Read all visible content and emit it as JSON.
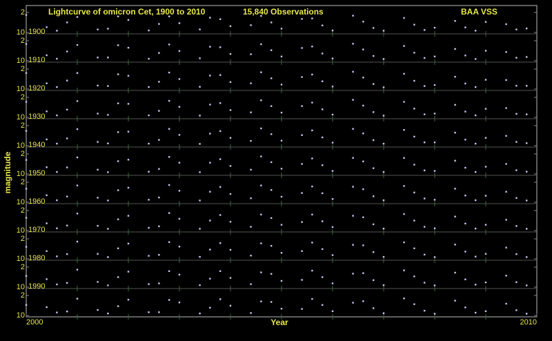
{
  "chart_data": {
    "type": "scatter",
    "title": "Lightcurve of omicron Cet, 1900 to 2010",
    "annotations": [
      "15,840 Observations",
      "BAA VSS"
    ],
    "x_label": "Year",
    "y_label": "magnitude",
    "xlim": [
      2000,
      2010
    ],
    "xticks": [
      2000,
      2010
    ],
    "xticks_minor": [
      2001,
      2002,
      2003,
      2004,
      2005,
      2006,
      2007,
      2008,
      2009
    ],
    "ylim": [
      10,
      2
    ],
    "yticks": [
      2,
      10
    ],
    "color": "#c8c8f4",
    "x": [
      2000,
      2000.2,
      2000.4,
      2000.6,
      2000.8,
      2001,
      2001.2,
      2001.4,
      2001.6,
      2001.8,
      2002,
      2002.2,
      2002.4,
      2002.6,
      2002.8,
      2003,
      2003.2,
      2003.4,
      2003.6,
      2003.8,
      2004,
      2004.2,
      2004.4,
      2004.6,
      2004.8,
      2005,
      2005.2,
      2005.4,
      2005.6,
      2005.8,
      2006,
      2006.2,
      2006.4,
      2006.6,
      2006.8,
      2007,
      2007.2,
      2007.4,
      2007.6,
      2007.8,
      2008,
      2008.2,
      2008.4,
      2008.6,
      2008.8,
      2009,
      2009.2,
      2009.4,
      2009.6,
      2009.8
    ],
    "series": [
      {
        "name": "1900",
        "values": [
          3.0,
          null,
          7.9,
          9.3,
          6.0,
          3.8,
          null,
          8.8,
          8.5,
          3.6,
          5.0,
          null,
          9.2,
          6.6,
          3.6,
          6.3,
          null,
          8.8,
          4.1,
          4.7,
          7.5,
          null,
          7.1,
          3.4,
          6.0,
          8.5,
          null,
          4.6,
          4.4,
          7.2,
          9.2,
          null,
          3.3,
          5.7,
          8.2,
          9.3,
          null,
          4.2,
          6.9,
          9.0,
          8.1,
          null,
          5.4,
          8.0,
          9.3,
          5.8,
          null,
          6.7,
          8.8,
          8.4
        ]
      },
      {
        "name": "1910",
        "values": [
          3.3,
          null,
          7.8,
          9.2,
          6.3,
          3.7,
          null,
          8.7,
          8.7,
          3.8,
          4.8,
          null,
          9.2,
          6.9,
          3.5,
          6.1,
          null,
          9.0,
          4.4,
          4.6,
          7.3,
          null,
          7.4,
          3.4,
          5.8,
          8.3,
          null,
          4.9,
          4.3,
          7.1,
          9.1,
          null,
          3.2,
          5.5,
          8.1,
          9.3,
          null,
          4.1,
          6.8,
          8.9,
          8.3,
          null,
          5.3,
          7.9,
          9.3,
          6.0,
          null,
          6.5,
          8.8,
          8.5
        ]
      },
      {
        "name": "1920",
        "values": [
          3.6,
          null,
          7.7,
          9.2,
          6.6,
          3.6,
          null,
          8.6,
          8.8,
          4.1,
          4.7,
          null,
          9.2,
          7.1,
          3.4,
          6.0,
          null,
          9.1,
          4.6,
          4.4,
          7.2,
          null,
          7.7,
          3.3,
          5.7,
          8.2,
          null,
          5.2,
          4.2,
          6.9,
          9.0,
          null,
          3.1,
          5.4,
          8.0,
          9.3,
          null,
          3.9,
          6.7,
          8.8,
          8.4,
          null,
          5.1,
          7.8,
          9.2,
          6.3,
          null,
          6.4,
          8.7,
          8.7
        ]
      },
      {
        "name": "1930",
        "values": [
          3.8,
          null,
          7.6,
          9.2,
          6.9,
          3.5,
          null,
          8.5,
          9.0,
          4.4,
          4.6,
          null,
          9.2,
          7.4,
          3.4,
          5.8,
          null,
          9.3,
          4.9,
          4.3,
          7.1,
          null,
          8.0,
          3.2,
          5.5,
          8.1,
          null,
          5.5,
          4.1,
          6.8,
          8.9,
          null,
          3.0,
          5.3,
          7.9,
          9.3,
          null,
          3.8,
          6.5,
          8.8,
          8.5,
          null,
          5.0,
          7.7,
          9.2,
          6.6,
          null,
          6.3,
          8.6,
          8.8
        ]
      },
      {
        "name": "1940",
        "values": [
          4.1,
          null,
          7.5,
          9.2,
          7.1,
          3.4,
          null,
          8.5,
          9.1,
          4.6,
          4.4,
          null,
          9.2,
          7.7,
          3.3,
          5.7,
          null,
          9.3,
          5.2,
          4.2,
          6.9,
          null,
          8.1,
          3.1,
          5.4,
          8.0,
          null,
          5.8,
          3.9,
          6.7,
          8.8,
          null,
          3.3,
          5.1,
          7.8,
          9.2,
          null,
          3.7,
          6.4,
          8.7,
          8.7,
          null,
          4.8,
          7.6,
          9.2,
          6.9,
          null,
          6.1,
          8.5,
          9.0
        ]
      },
      {
        "name": "1950",
        "values": [
          4.4,
          null,
          7.3,
          9.2,
          7.4,
          3.4,
          null,
          8.3,
          9.3,
          4.9,
          4.3,
          null,
          9.1,
          8.0,
          3.2,
          5.5,
          null,
          9.3,
          5.5,
          4.1,
          6.8,
          null,
          8.3,
          3.0,
          5.3,
          7.9,
          null,
          6.0,
          3.8,
          6.5,
          8.8,
          null,
          3.6,
          5.0,
          7.7,
          9.2,
          null,
          3.6,
          6.3,
          8.6,
          8.8,
          null,
          4.7,
          7.5,
          9.2,
          7.1,
          null,
          6.0,
          8.5,
          9.1
        ]
      },
      {
        "name": "1960",
        "values": [
          4.6,
          null,
          7.2,
          9.2,
          7.7,
          3.3,
          null,
          8.2,
          9.3,
          5.2,
          4.2,
          null,
          9.0,
          8.1,
          3.1,
          5.4,
          null,
          9.3,
          5.8,
          3.9,
          6.7,
          null,
          8.4,
          3.3,
          5.1,
          7.8,
          null,
          6.3,
          3.7,
          6.4,
          8.7,
          null,
          3.8,
          4.8,
          7.6,
          9.2,
          null,
          3.5,
          6.1,
          8.5,
          9.0,
          null,
          4.6,
          7.3,
          9.2,
          7.4,
          null,
          5.8,
          8.3,
          9.3
        ]
      },
      {
        "name": "1970",
        "values": [
          4.9,
          null,
          7.1,
          9.1,
          8.0,
          3.2,
          null,
          8.1,
          9.3,
          5.5,
          4.1,
          null,
          8.9,
          8.3,
          3.0,
          5.3,
          null,
          9.3,
          6.0,
          3.8,
          6.5,
          null,
          8.5,
          3.6,
          5.0,
          7.7,
          null,
          6.6,
          3.6,
          6.3,
          8.6,
          null,
          4.1,
          4.7,
          7.5,
          9.2,
          null,
          3.4,
          6.0,
          8.5,
          9.1,
          null,
          4.4,
          7.2,
          9.2,
          7.7,
          null,
          5.7,
          8.2,
          9.3
        ]
      },
      {
        "name": "1980",
        "values": [
          5.2,
          null,
          6.9,
          9.0,
          8.1,
          3.1,
          null,
          8.0,
          9.3,
          5.8,
          3.9,
          null,
          8.8,
          8.4,
          3.3,
          5.1,
          null,
          9.2,
          6.3,
          3.7,
          6.4,
          null,
          8.7,
          3.8,
          4.8,
          7.6,
          null,
          6.9,
          3.5,
          6.1,
          8.5,
          null,
          4.4,
          4.6,
          7.3,
          9.2,
          null,
          3.4,
          5.8,
          8.3,
          9.3,
          null,
          4.3,
          7.1,
          9.1,
          8.0,
          null,
          5.5,
          8.1,
          9.3
        ]
      },
      {
        "name": "1990",
        "values": [
          5.5,
          null,
          6.8,
          8.9,
          8.3,
          3.0,
          null,
          7.9,
          9.3,
          6.0,
          3.8,
          null,
          8.8,
          8.5,
          3.6,
          5.0,
          null,
          9.2,
          6.6,
          3.6,
          6.3,
          null,
          8.8,
          4.1,
          4.7,
          7.5,
          null,
          7.1,
          3.4,
          6.0,
          8.5,
          null,
          4.6,
          4.4,
          7.2,
          9.2,
          null,
          3.3,
          5.7,
          8.2,
          9.3,
          null,
          4.2,
          6.9,
          9.0,
          8.1,
          null,
          5.4,
          8.0,
          9.3
        ]
      },
      {
        "values": [
          5.8,
          null,
          6.7,
          8.8,
          8.4,
          3.3,
          null,
          7.8,
          9.2,
          6.3,
          3.7,
          null,
          8.7,
          8.7,
          3.8,
          4.8,
          null,
          9.2,
          6.9,
          3.5,
          6.1,
          null,
          9.0,
          4.4,
          4.6,
          7.3,
          null,
          7.4,
          3.4,
          5.8,
          8.3,
          null,
          4.9,
          4.3,
          7.1,
          9.1,
          null,
          3.2,
          5.5,
          8.1,
          9.3,
          null,
          4.1,
          6.8,
          8.9,
          8.3,
          null,
          5.3,
          7.9,
          9.3
        ]
      }
    ]
  }
}
